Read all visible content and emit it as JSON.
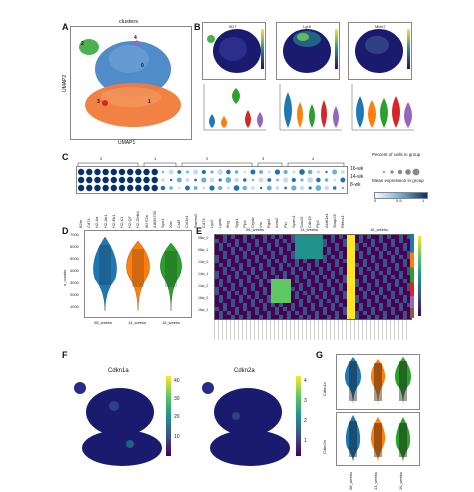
{
  "panels": {
    "A": {
      "letter": "A",
      "title": "clusters",
      "xlabel": "UMAP1",
      "ylabel": "UMAP2",
      "cluster_labels": [
        "0",
        "1",
        "2",
        "3",
        "4"
      ]
    },
    "B": {
      "letter": "B",
      "feature_titles": [
        "Ifi27",
        "Lgr5",
        "Mki67"
      ]
    },
    "C": {
      "letter": "C",
      "group_labels": [
        "0",
        "1",
        "2",
        "3",
        "4"
      ],
      "genes": [
        "B2m",
        "Cd74",
        "H2-Aa",
        "H2-Ab1",
        "H2-Eb1",
        "H2-K1",
        "H2-Q7",
        "H2-DMb1",
        "Ifi27l2a",
        "AI839735",
        "Sprr1",
        "Xist",
        "Cst3",
        "Col3a1",
        "Rarres2",
        "Cd74",
        "Lyz2",
        "Lgals",
        "Ifng",
        "Spp1",
        "Plp1",
        "Cryab",
        "Vtn",
        "Rgs5",
        "Acta2",
        "Pln",
        "Sparc1",
        "Sox10",
        "Cdh19",
        "Plp1",
        "Aldh1a1",
        "Snap25",
        "Rbfox1"
      ],
      "timepoints": [
        "16-wk",
        "14-wk",
        "8-wk"
      ],
      "legend": {
        "size_title": "Percent of cells in group",
        "expr_title": "Mean expression in group",
        "expr_ticks": [
          "0",
          "0.5",
          "1"
        ]
      }
    },
    "D": {
      "letter": "D",
      "ylabel": "n_counts",
      "yticks": [
        "7000",
        "6000",
        "5000",
        "4000",
        "3000",
        "2000",
        "1000"
      ],
      "groups": [
        "08_weeks",
        "14_weeks",
        "16_weeks"
      ],
      "colors": [
        "#1f77b4",
        "#ff7f0e",
        "#2ca02c"
      ]
    },
    "E": {
      "letter": "E",
      "row_labels": [
        "08w_0",
        "08w_1",
        "14w_0",
        "14w_1",
        "14w_2",
        "16w_0",
        "16w_1"
      ],
      "col_group_labels": [
        "08_weeks",
        "14_weeks",
        "16_weeks"
      ]
    },
    "F": {
      "letter": "F",
      "titles": [
        "Cdkn1a",
        "Cdkn2a"
      ],
      "cbar1_ticks": [
        "40",
        "30",
        "20",
        "10"
      ],
      "cbar2_ticks": [
        "4",
        "3",
        "2",
        "1"
      ]
    },
    "G": {
      "letter": "G",
      "ylabels": [
        "Cdkn1a",
        "Cdkn2a"
      ],
      "groups": [
        "08_weeks",
        "14_weeks",
        "16_weeks"
      ]
    }
  },
  "colors": {
    "c0": "#1f77b4",
    "c1": "#ff7f0e",
    "c2": "#2ca02c",
    "c3": "#d62728",
    "c4": "#9467bd",
    "umap_blue": "#3d7fc4",
    "umap_orange": "#f07b3a",
    "umap_green": "#4caf50",
    "navy": "#1a1a6e",
    "viridis_top": "#fde725"
  }
}
